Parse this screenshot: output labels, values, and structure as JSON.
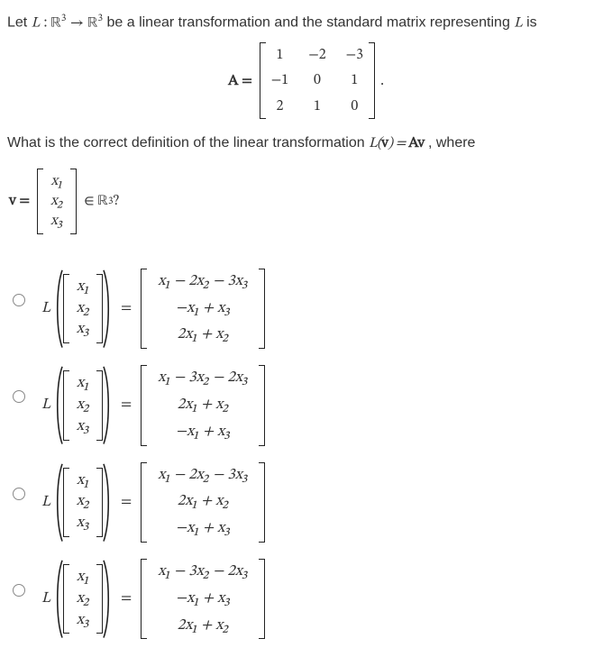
{
  "intro": {
    "let": "Let ",
    "L": "L",
    "colon": " : ",
    "R3a": "ℝ",
    "sup3a": "3",
    "arrow": " → ",
    "R3b": "ℝ",
    "sup3b": "3",
    "rest": " be a linear transformation and the standard matrix representing ",
    "L2": "L",
    "is": " is"
  },
  "Amatrix": {
    "Aeq": "A =",
    "r": [
      "1",
      "−2",
      "−3",
      "−1",
      "0",
      "1",
      "2",
      "1",
      "0"
    ],
    "dot": "."
  },
  "ask": {
    "pre": "What is the correct definition of the linear transformation ",
    "Lv": "L(v) = Av",
    "post": ", where"
  },
  "vdef": {
    "veq": "v =",
    "x1": "x₁",
    "x2": "x₂",
    "x3": "x₃",
    "inR": " ∈ ℝ",
    "sup3": "3",
    "q": "?"
  },
  "options": [
    {
      "rows": [
        "x₁ − 2x₂ − 3x₃",
        "−x₁ + x₃",
        "2x₁ + x₂"
      ]
    },
    {
      "rows": [
        "x₁ − 3x₂ − 2x₃",
        "2x₁ + x₂",
        "−x₁ + x₃"
      ]
    },
    {
      "rows": [
        "x₁ − 2x₂ − 3x₃",
        "2x₁ + x₂",
        "−x₁ + x₃"
      ]
    },
    {
      "rows": [
        "x₁ − 3x₂ − 2x₃",
        "−x₁ + x₃",
        "2x₁ + x₂"
      ]
    }
  ],
  "lhs": {
    "L": "L",
    "x1": "x₁",
    "x2": "x₂",
    "x3": "x₃",
    "eq": "="
  },
  "style": {
    "text_color": "#333333",
    "border_color": "#222222",
    "radio_border": "#888888",
    "background": "#ffffff",
    "fontsize_body": 16,
    "fontsize_math": 17
  }
}
